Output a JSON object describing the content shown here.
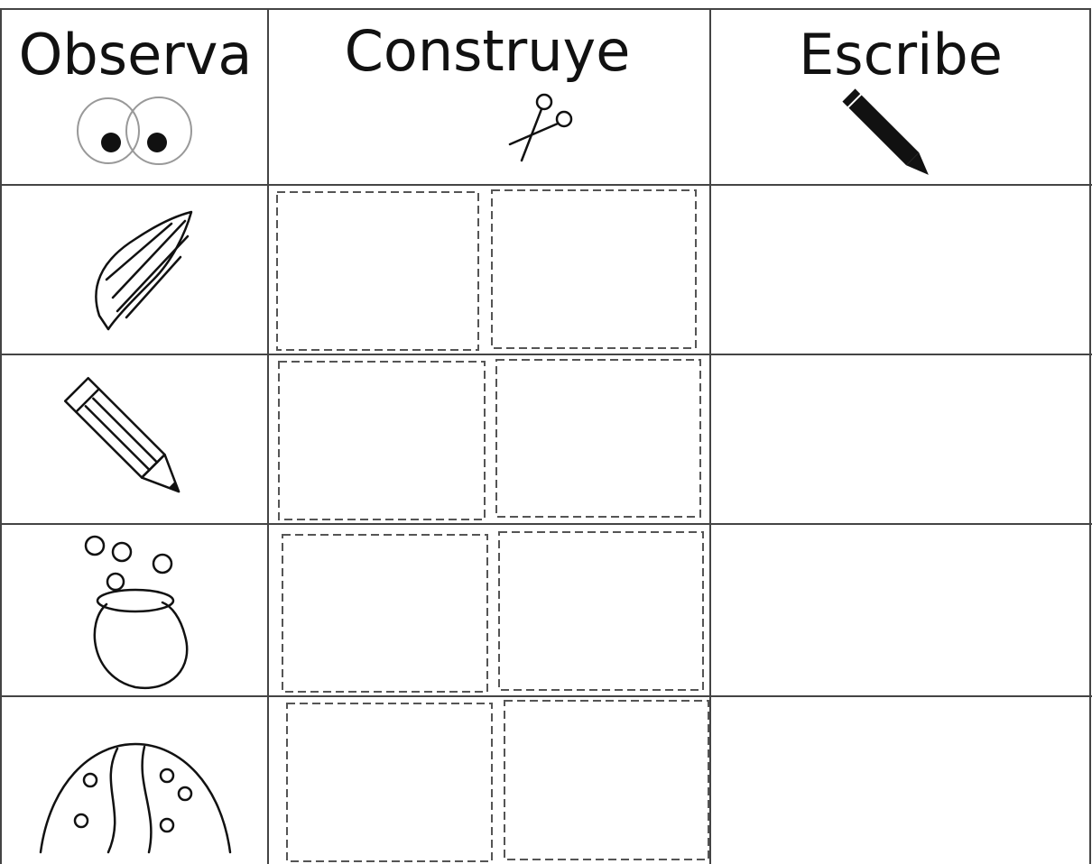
{
  "table": {
    "headers": [
      "Observa",
      "Construye",
      "Escribe"
    ]
  }
}
